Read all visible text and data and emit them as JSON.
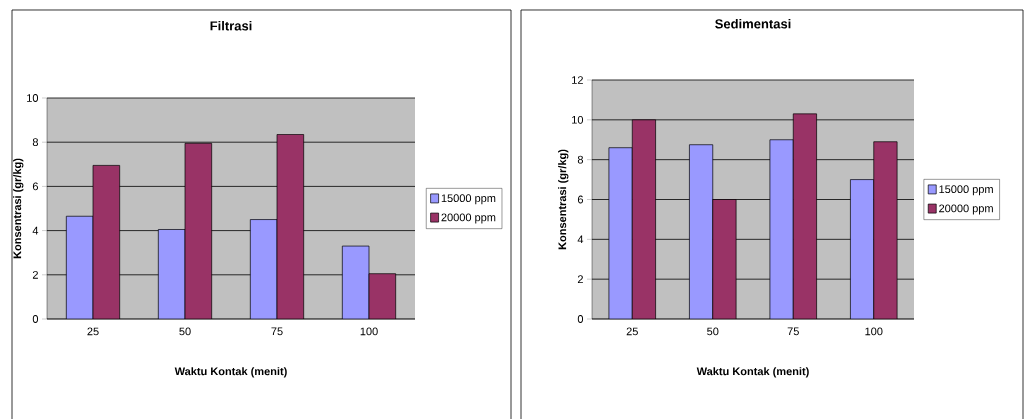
{
  "chart_data": [
    {
      "type": "bar",
      "title": "Filtrasi",
      "xlabel": "Waktu Kontak (menit)",
      "ylabel": "Konsentrasi  (gr/kg)",
      "categories": [
        "25",
        "50",
        "75",
        "100"
      ],
      "series": [
        {
          "name": "15000 ppm",
          "color": "#9999ff",
          "values": [
            4.65,
            4.05,
            4.5,
            3.3
          ]
        },
        {
          "name": "20000 ppm",
          "color": "#993366",
          "values": [
            6.95,
            7.95,
            8.35,
            2.05
          ]
        }
      ],
      "ylim": [
        0,
        10
      ],
      "yticks": [
        0,
        2,
        4,
        6,
        8,
        10
      ],
      "grid": "y",
      "legend": "right"
    },
    {
      "type": "bar",
      "title": "Sedimentasi",
      "xlabel": "Waktu Kontak (menit)",
      "ylabel": "Konsentrasi  (gr/kg)",
      "categories": [
        "25",
        "50",
        "75",
        "100"
      ],
      "series": [
        {
          "name": "15000 ppm",
          "color": "#9999ff",
          "values": [
            8.6,
            8.75,
            9.0,
            7.0
          ]
        },
        {
          "name": "20000 ppm",
          "color": "#993366",
          "values": [
            10.0,
            6.0,
            10.3,
            8.9
          ]
        }
      ],
      "ylim": [
        0,
        12
      ],
      "yticks": [
        0,
        2,
        4,
        6,
        8,
        10,
        12
      ],
      "grid": "y",
      "legend": "right"
    }
  ]
}
